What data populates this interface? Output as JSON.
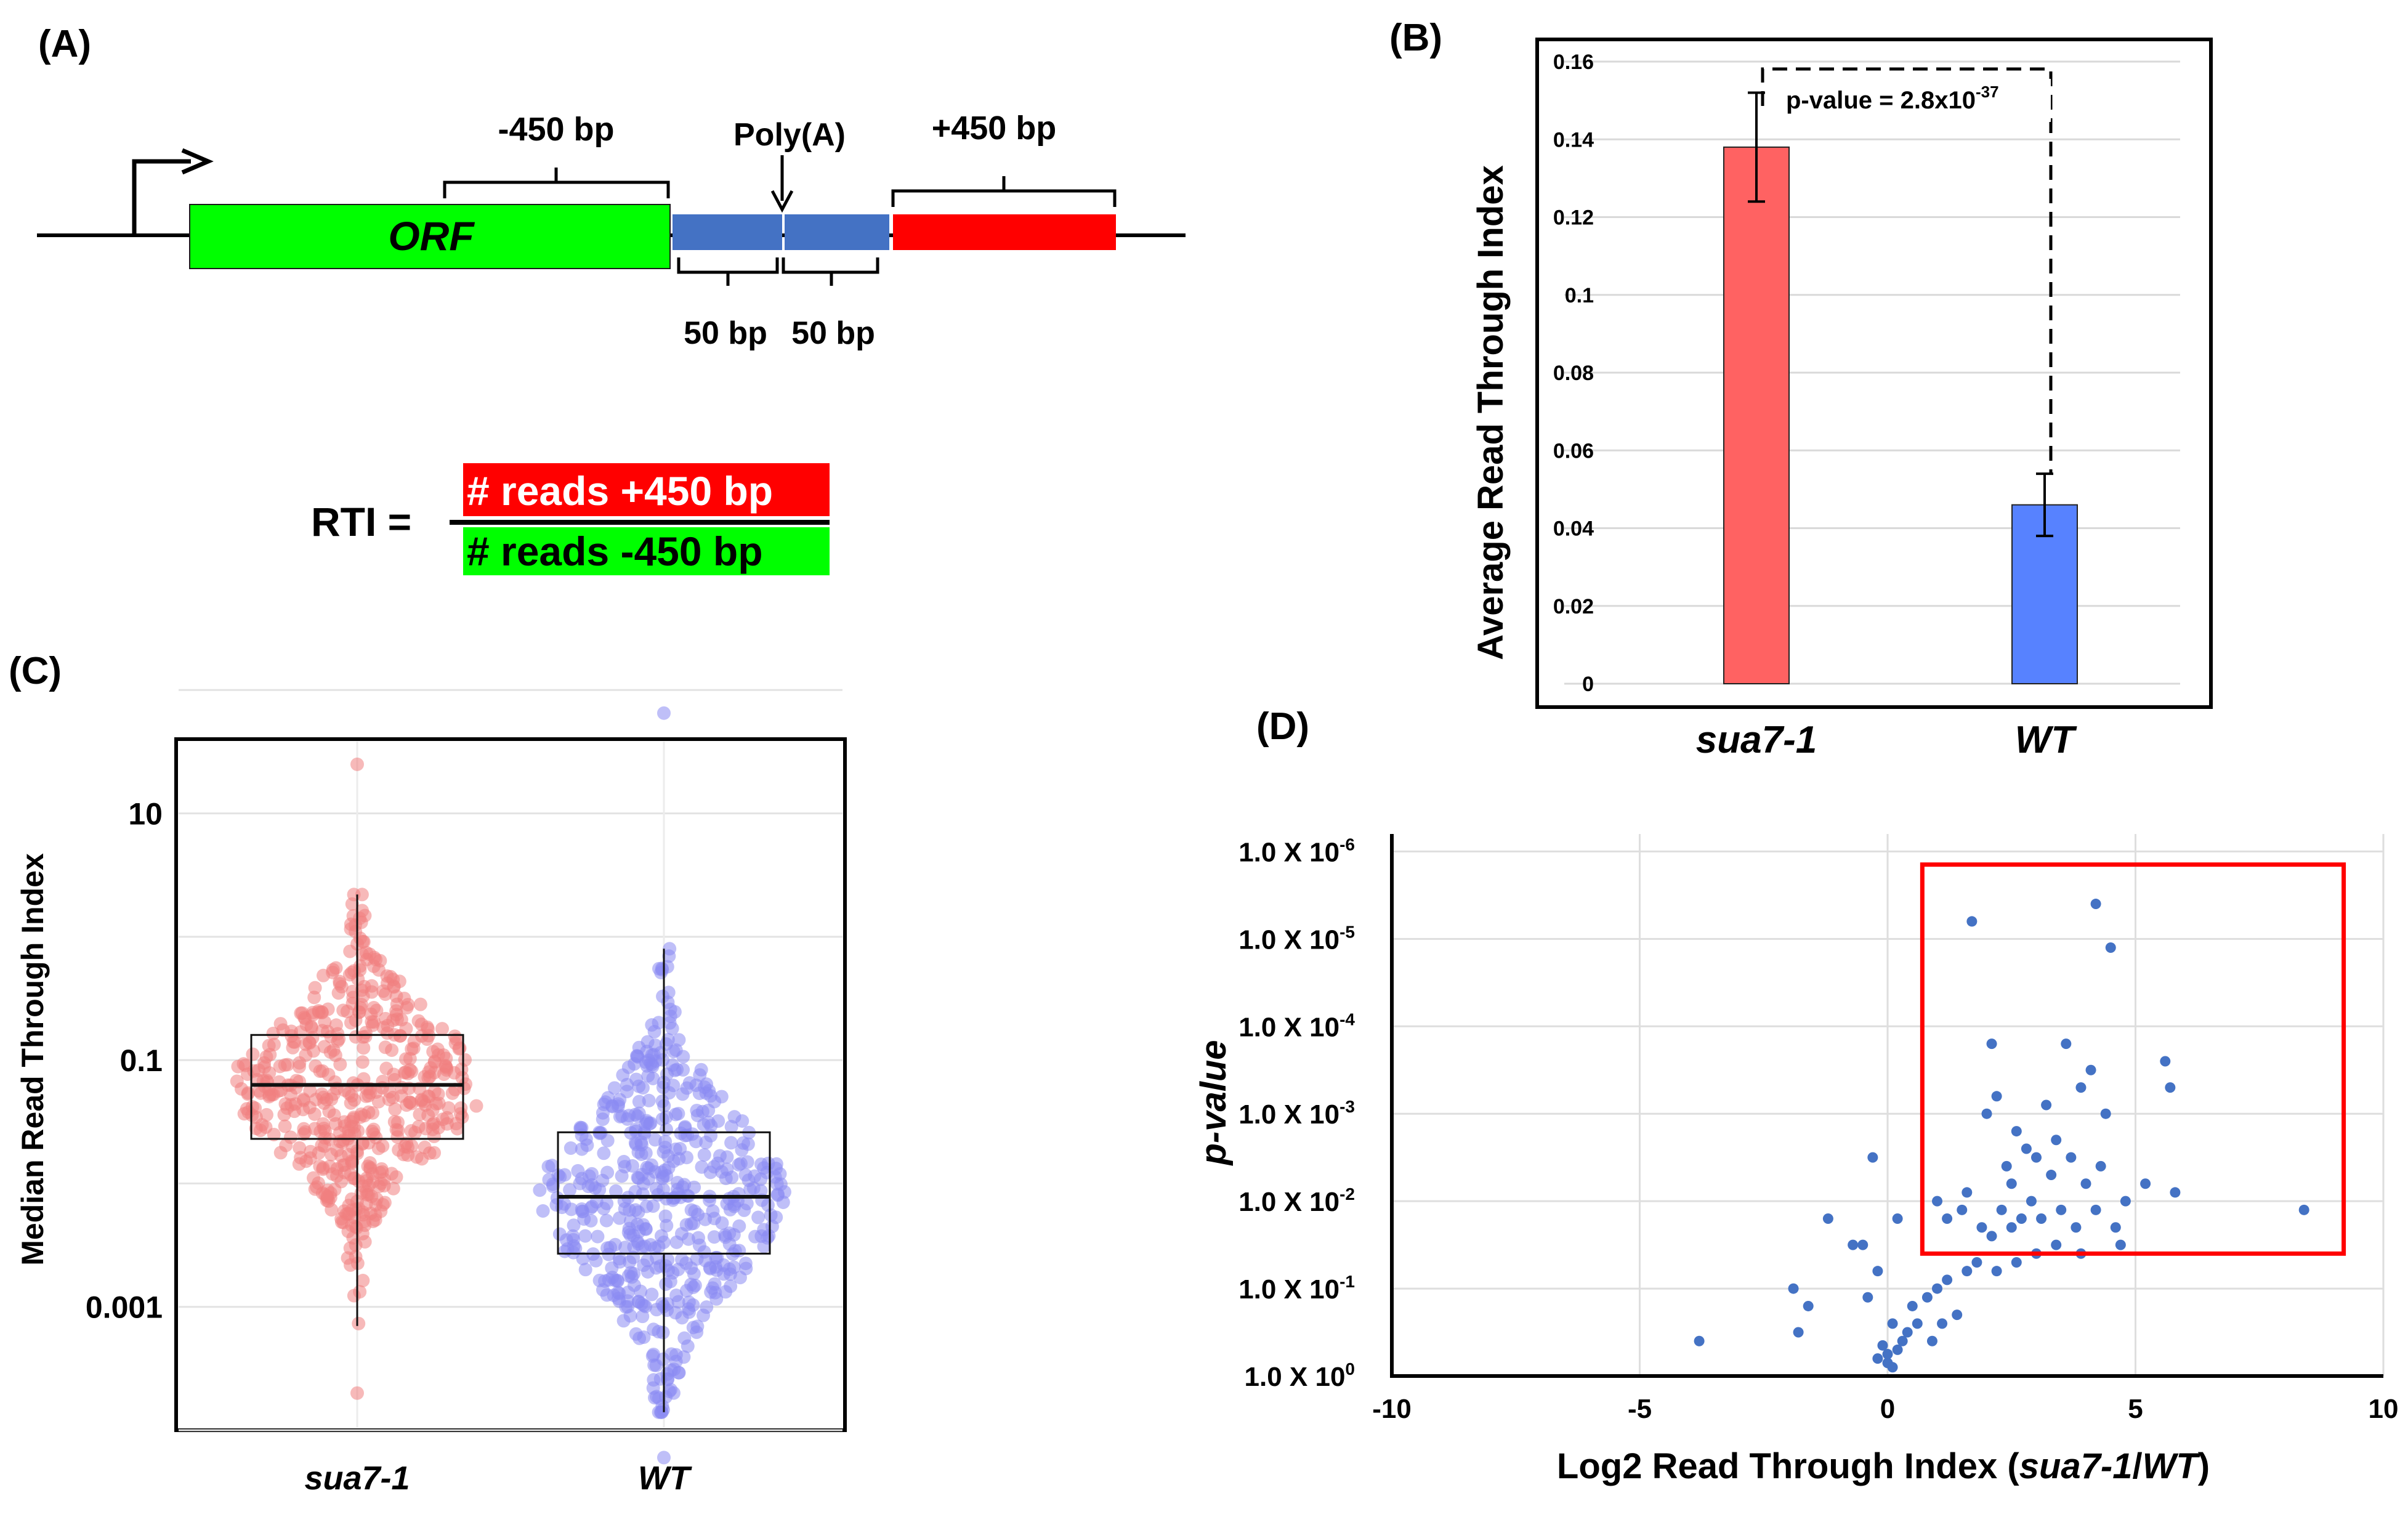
{
  "panels": {
    "a": {
      "label": "(A)",
      "orf_label": "ORF",
      "upstream_label": "-450 bp",
      "polya_label": "Poly(A)",
      "downstream_label": "+450 bp",
      "left_50_label": "50 bp",
      "right_50_label": "50 bp",
      "rti_lhs": "RTI =",
      "rti_numerator": "# reads +450 bp",
      "rti_denominator": "# reads  -450 bp",
      "colors": {
        "orf": "#00ff00",
        "polya": "#4472c4",
        "downstream": "#ff0000"
      }
    },
    "b": {
      "label": "(B)"
    },
    "c": {
      "label": "(C)"
    },
    "d": {
      "label": "(D)"
    }
  },
  "chart_data": [
    {
      "panel": "B",
      "type": "bar",
      "categories": [
        "sua7-1",
        "WT"
      ],
      "values": [
        0.138,
        0.046
      ],
      "error": [
        0.014,
        0.008
      ],
      "colors": [
        "#ff6262",
        "#5782ff"
      ],
      "ylabel": "Average Read Through Index",
      "ylim": [
        0,
        0.16
      ],
      "yticks": [
        "0",
        "0.02",
        "0.04",
        "0.06",
        "0.08",
        "0.1",
        "0.12",
        "0.14",
        "0.16"
      ],
      "grid": true,
      "annotation": {
        "prefix": "p-value = 2.8x10",
        "exponent": "-37"
      }
    },
    {
      "panel": "C",
      "type": "scatter",
      "style": "beeswarm with box plot",
      "ylabel": "Median Read Through Index",
      "yscale": "log10",
      "ylim": [
        0.0001,
        40
      ],
      "yticks": [
        "10",
        "0.1",
        "0.001"
      ],
      "categories": [
        "sua7-1",
        "WT"
      ],
      "series": [
        {
          "name": "sua7-1",
          "color": "#f08080",
          "box": {
            "q1": 0.023,
            "median": 0.063,
            "q3": 0.16,
            "whisker_low": 0.0007,
            "whisker_high": 2.2
          },
          "extremes": [
            25,
            0.0002
          ]
        },
        {
          "name": "WT",
          "color": "#8a8af2",
          "box": {
            "q1": 0.0027,
            "median": 0.0078,
            "q3": 0.026,
            "whisker_low": 0.00014,
            "whisker_high": 0.8
          },
          "extremes": [
            65,
            6e-05
          ]
        }
      ]
    },
    {
      "panel": "D",
      "type": "scatter",
      "color": "#4472c4",
      "xlabel_prefix": "Log2 Read Through Index (",
      "xlabel_italic_a": "sua7-1",
      "xlabel_sep": "/",
      "xlabel_italic_b": "WT",
      "xlabel_suffix": ")",
      "ylabel": "p-value",
      "xlim": [
        -10,
        10
      ],
      "xticks": [
        "-10",
        "-5",
        "0",
        "5",
        "10"
      ],
      "ylim": [
        0,
        6.2
      ],
      "yticks": [
        {
          "base": "1.0 X 10",
          "exp": "0"
        },
        {
          "base": "1.0 X 10",
          "exp": "-1"
        },
        {
          "base": "1.0 X 10",
          "exp": "-2"
        },
        {
          "base": "1.0 X 10",
          "exp": "-3"
        },
        {
          "base": "1.0 X 10",
          "exp": "-4"
        },
        {
          "base": "1.0 X 10",
          "exp": "-5"
        },
        {
          "base": "1.0 X 10",
          "exp": "-6"
        }
      ],
      "highlight_box": {
        "x0": 0.7,
        "x1": 9.2,
        "y0": 1.4,
        "y1": 5.85,
        "color": "#ff0000"
      },
      "points": [
        [
          -3.8,
          0.4
        ],
        [
          -1.9,
          1.0
        ],
        [
          -1.8,
          0.5
        ],
        [
          -1.2,
          1.8
        ],
        [
          -1.6,
          0.8
        ],
        [
          -0.7,
          1.5
        ],
        [
          -0.3,
          2.5
        ],
        [
          -0.4,
          0.9
        ],
        [
          -0.5,
          1.5
        ],
        [
          0.2,
          1.8
        ],
        [
          -0.2,
          1.2
        ],
        [
          0.1,
          0.6
        ],
        [
          -0.2,
          0.2
        ],
        [
          -0.1,
          0.35
        ],
        [
          0.0,
          0.15
        ],
        [
          0.1,
          0.1
        ],
        [
          0.0,
          0.25
        ],
        [
          0.2,
          0.3
        ],
        [
          0.3,
          0.4
        ],
        [
          0.4,
          0.5
        ],
        [
          0.5,
          0.8
        ],
        [
          0.6,
          0.6
        ],
        [
          0.8,
          0.9
        ],
        [
          1.0,
          1.0
        ],
        [
          1.2,
          1.1
        ],
        [
          1.4,
          0.7
        ],
        [
          1.6,
          1.2
        ],
        [
          1.8,
          1.3
        ],
        [
          0.9,
          0.4
        ],
        [
          1.1,
          0.6
        ],
        [
          1.7,
          5.2
        ],
        [
          4.2,
          5.4
        ],
        [
          4.5,
          4.9
        ],
        [
          2.1,
          3.8
        ],
        [
          2.2,
          3.2
        ],
        [
          2.0,
          3.0
        ],
        [
          3.6,
          3.8
        ],
        [
          4.1,
          3.5
        ],
        [
          4.4,
          3.0
        ],
        [
          3.9,
          3.3
        ],
        [
          3.2,
          3.1
        ],
        [
          2.6,
          2.8
        ],
        [
          2.8,
          2.6
        ],
        [
          3.4,
          2.7
        ],
        [
          3.0,
          2.5
        ],
        [
          2.4,
          2.4
        ],
        [
          2.5,
          2.2
        ],
        [
          3.3,
          2.3
        ],
        [
          3.7,
          2.5
        ],
        [
          4.0,
          2.2
        ],
        [
          4.3,
          2.4
        ],
        [
          4.8,
          2.0
        ],
        [
          5.2,
          2.2
        ],
        [
          5.8,
          2.1
        ],
        [
          5.6,
          3.6
        ],
        [
          5.7,
          3.3
        ],
        [
          8.4,
          1.9
        ],
        [
          1.0,
          2.0
        ],
        [
          1.2,
          1.8
        ],
        [
          1.5,
          1.9
        ],
        [
          1.6,
          2.1
        ],
        [
          1.9,
          1.7
        ],
        [
          2.1,
          1.6
        ],
        [
          2.3,
          1.9
        ],
        [
          2.5,
          1.7
        ],
        [
          2.7,
          1.8
        ],
        [
          2.9,
          2.0
        ],
        [
          3.1,
          1.8
        ],
        [
          3.5,
          1.9
        ],
        [
          3.8,
          1.7
        ],
        [
          4.2,
          1.9
        ],
        [
          4.6,
          1.7
        ],
        [
          2.2,
          1.2
        ],
        [
          2.6,
          1.3
        ],
        [
          3.0,
          1.4
        ],
        [
          3.4,
          1.5
        ],
        [
          3.9,
          1.4
        ],
        [
          4.7,
          1.5
        ]
      ]
    }
  ]
}
